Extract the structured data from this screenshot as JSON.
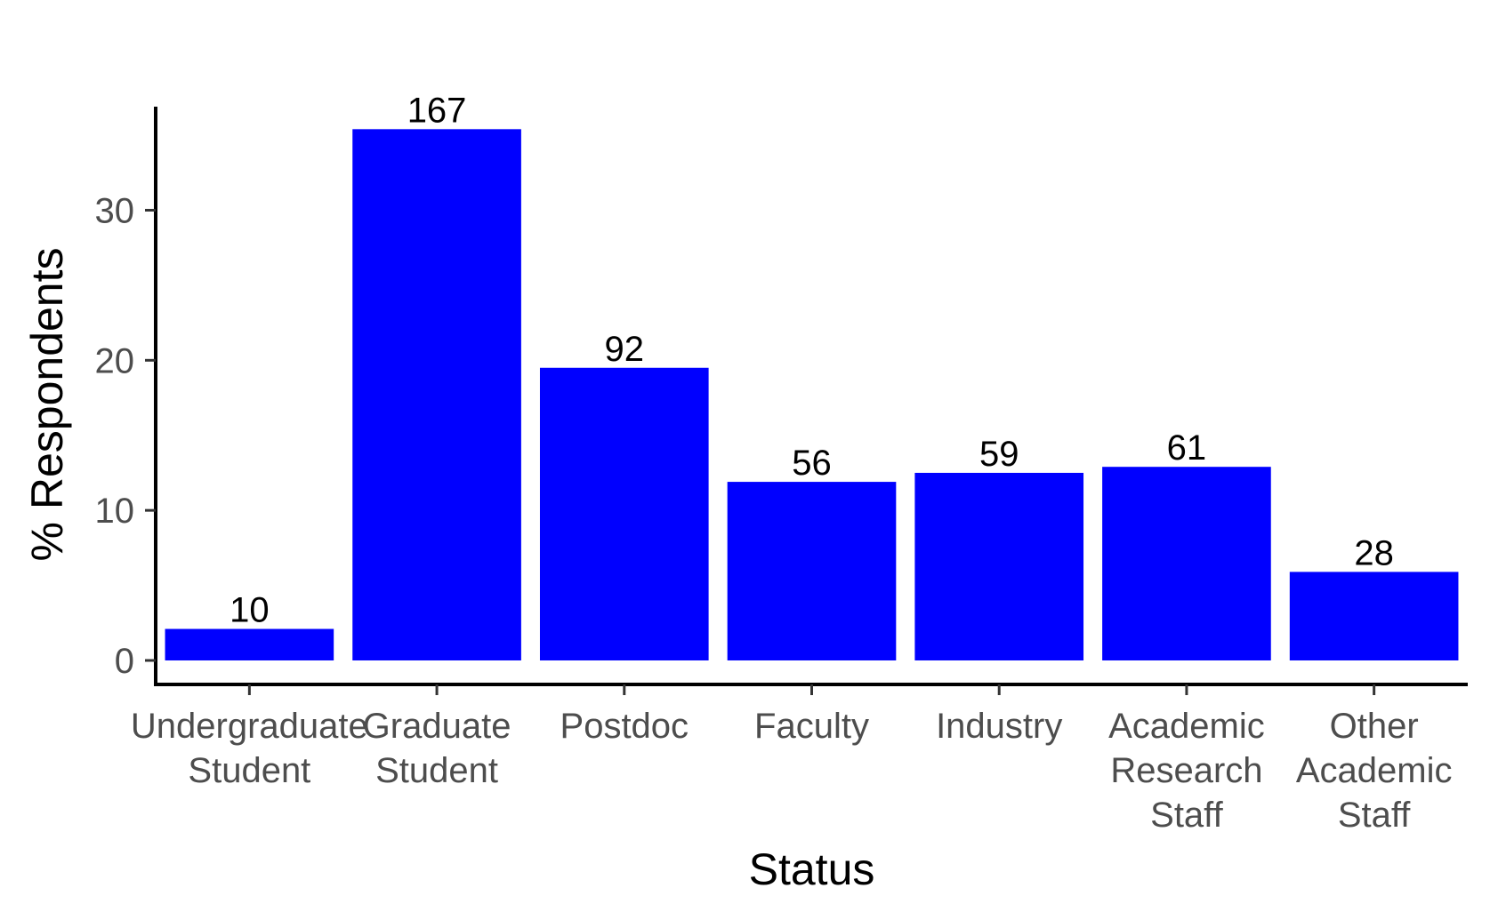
{
  "chart_data": {
    "type": "bar",
    "categories": [
      [
        "Undergraduate",
        "Student"
      ],
      [
        "Graduate",
        "Student"
      ],
      [
        "Postdoc"
      ],
      [
        "Faculty"
      ],
      [
        "Industry"
      ],
      [
        "Academic",
        "Research",
        "Staff"
      ],
      [
        "Other",
        "Academic",
        "Staff"
      ]
    ],
    "values": [
      2.1,
      35.4,
      19.5,
      11.9,
      12.5,
      12.9,
      5.9
    ],
    "data_labels": [
      "10",
      "167",
      "92",
      "56",
      "59",
      "61",
      "28"
    ],
    "title": "",
    "xlabel": "Status",
    "ylabel": "% Respondents",
    "ylim": [
      -1.6,
      36.9
    ],
    "yticks": [
      0,
      10,
      20,
      30
    ],
    "grid": false,
    "legend": "none",
    "bar_color": "#0000FF"
  }
}
